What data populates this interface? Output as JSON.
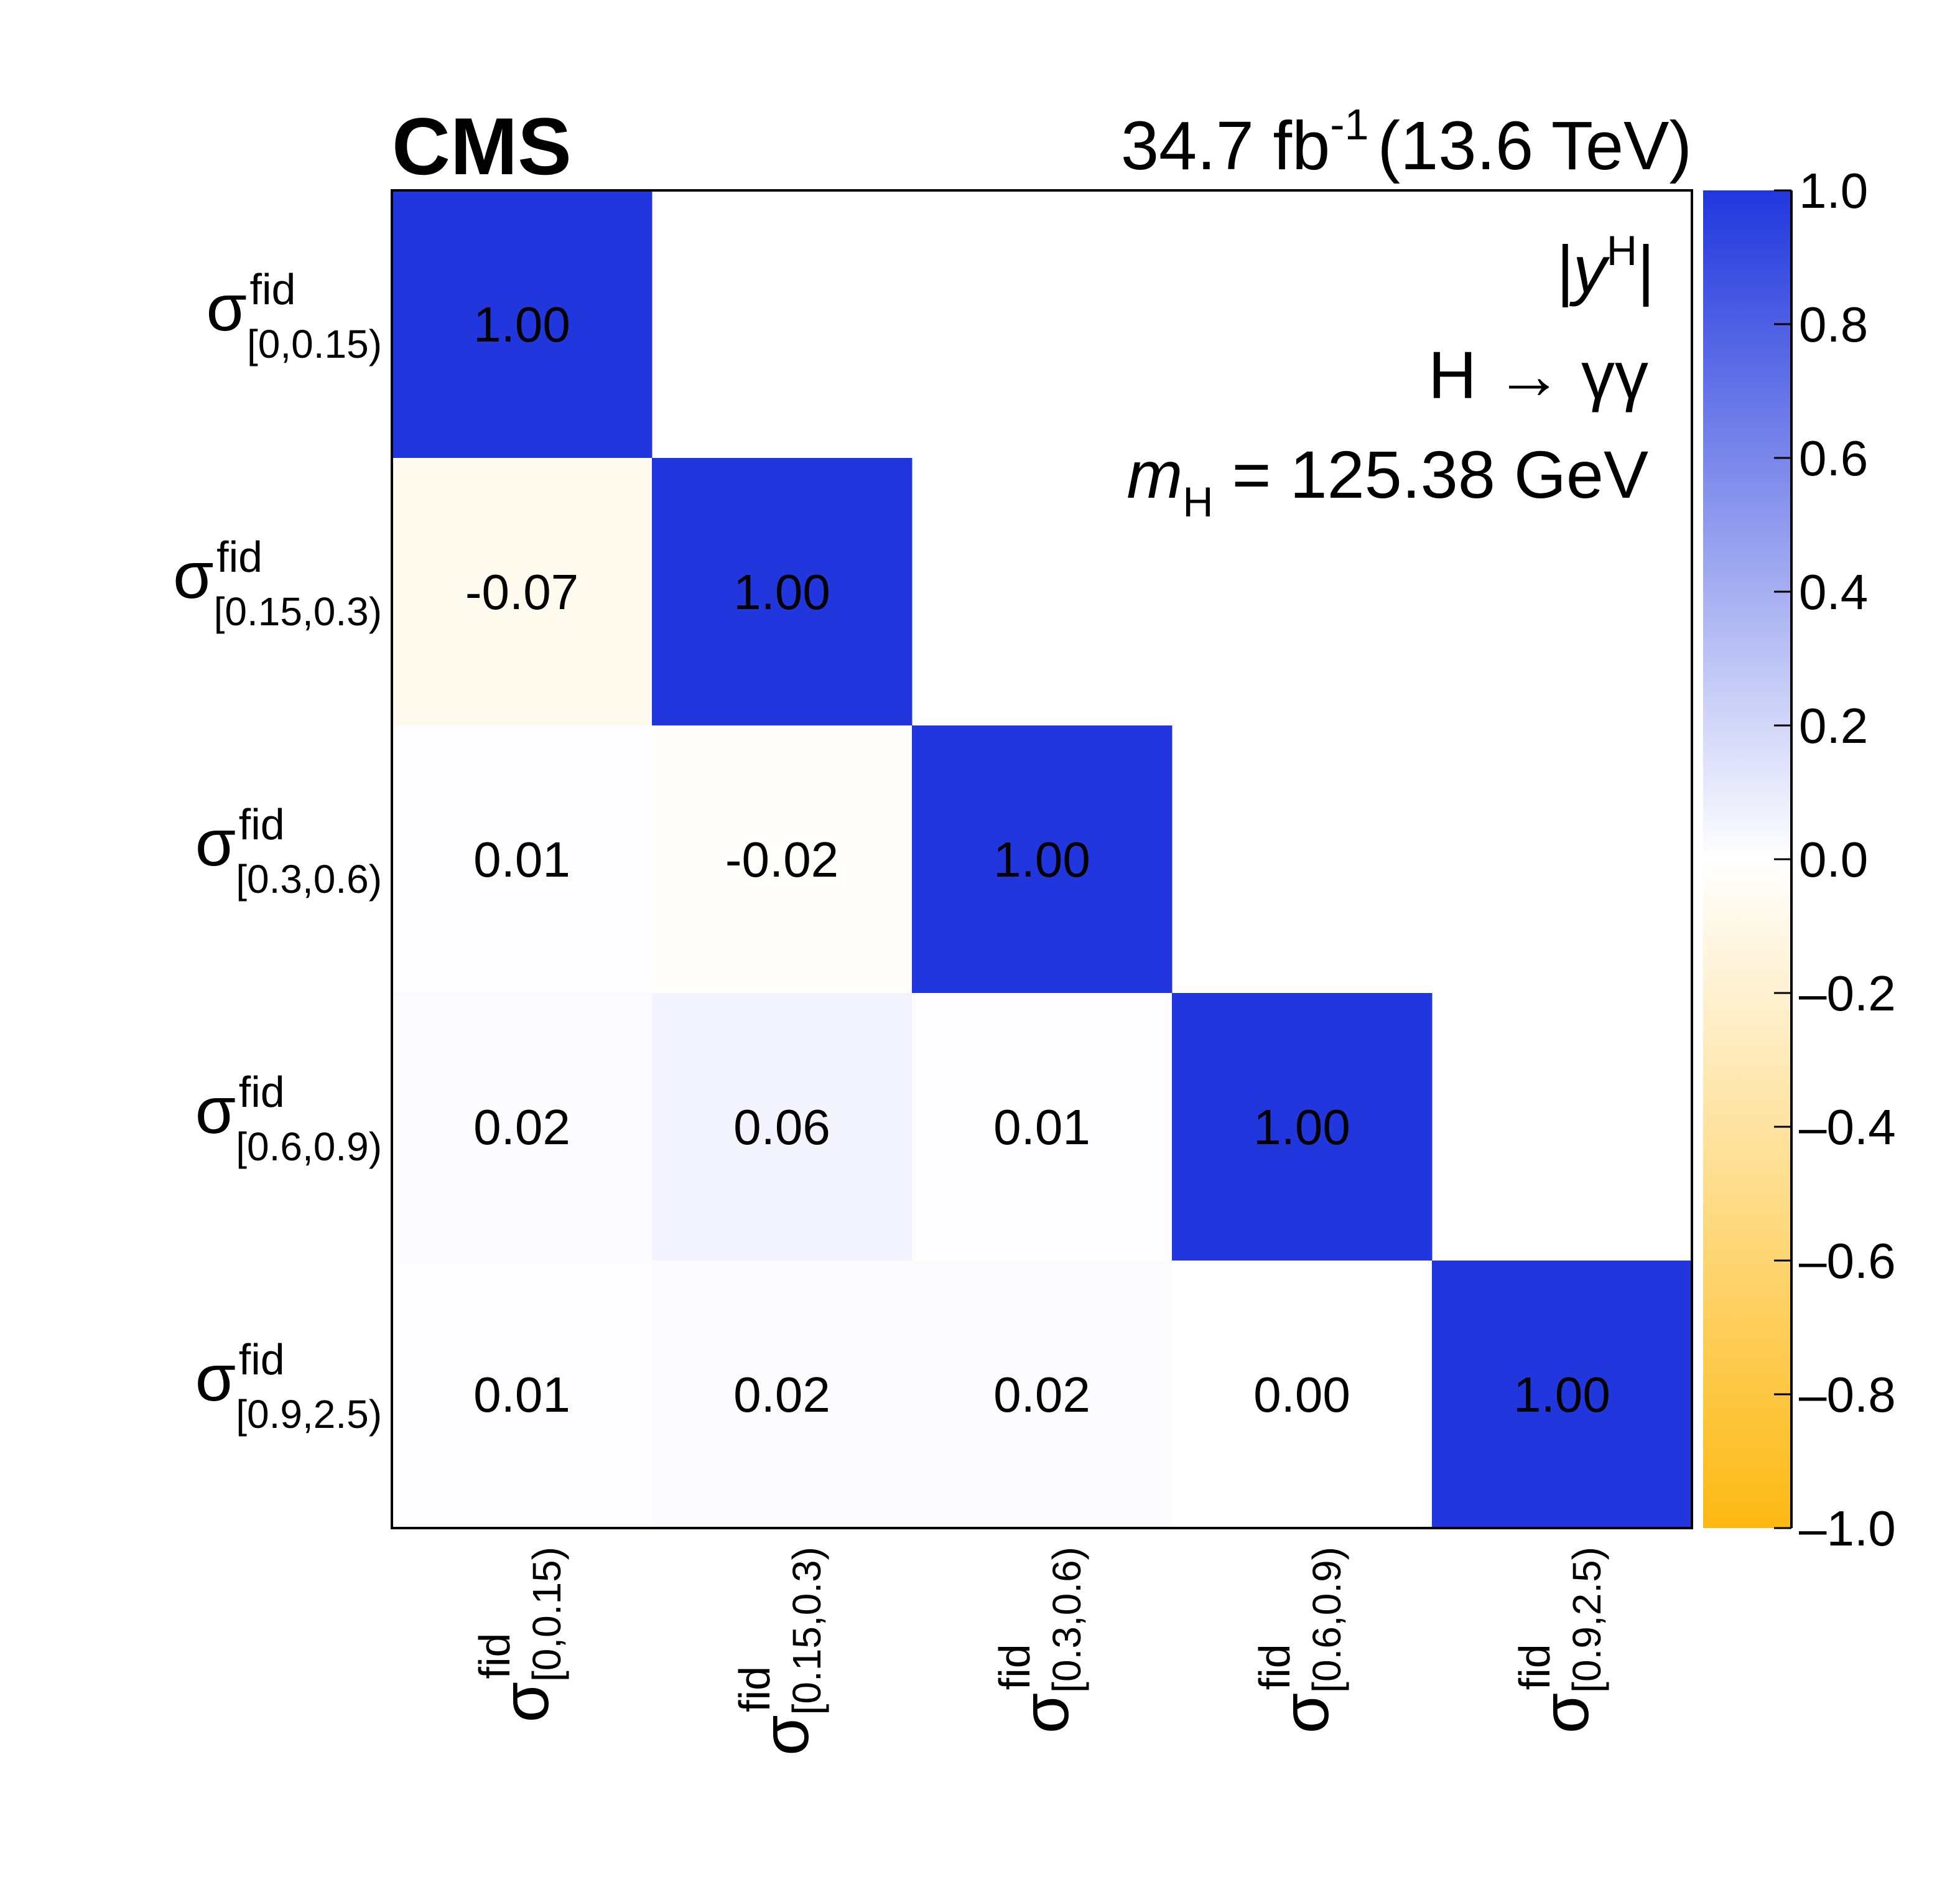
{
  "header": {
    "experiment": "CMS",
    "lumi_value": "34.7 fb",
    "lumi_exp": "-1",
    "energy": "(13.6 TeV)"
  },
  "annotations": {
    "observable": "|y",
    "observable_sup": "H",
    "observable_close": "|",
    "channel": "H → γγ",
    "mass_symbol": "m",
    "mass_sub": "H",
    "mass_value": " = 125.38 GeV"
  },
  "chart_data": {
    "type": "heatmap",
    "title": "",
    "xlabel": "",
    "ylabel": "",
    "categories": [
      {
        "symbol": "σ",
        "sup": "fid",
        "sub": "[0,0.15)"
      },
      {
        "symbol": "σ",
        "sup": "fid",
        "sub": "[0.15,0.3)"
      },
      {
        "symbol": "σ",
        "sup": "fid",
        "sub": "[0.3,0.6)"
      },
      {
        "symbol": "σ",
        "sup": "fid",
        "sub": "[0.6,0.9)"
      },
      {
        "symbol": "σ",
        "sup": "fid",
        "sub": "[0.9,2.5)"
      }
    ],
    "matrix": [
      [
        1.0,
        null,
        null,
        null,
        null
      ],
      [
        -0.07,
        1.0,
        null,
        null,
        null
      ],
      [
        0.01,
        -0.02,
        1.0,
        null,
        null
      ],
      [
        0.02,
        0.06,
        0.01,
        1.0,
        null
      ],
      [
        0.01,
        0.02,
        0.02,
        0.0,
        1.0
      ]
    ],
    "value_labels": [
      [
        "1.00",
        "",
        "",
        "",
        ""
      ],
      [
        "-0.07",
        "1.00",
        "",
        "",
        ""
      ],
      [
        "0.01",
        "-0.02",
        "1.00",
        "",
        ""
      ],
      [
        "0.02",
        "0.06",
        "0.01",
        "1.00",
        ""
      ],
      [
        "0.01",
        "0.02",
        "0.02",
        "0.00",
        "1.00"
      ]
    ],
    "colorbar": {
      "range": [
        -1.0,
        1.0
      ],
      "ticks": [
        "1.0",
        "0.8",
        "0.6",
        "0.4",
        "0.2",
        "0.0",
        "–0.2",
        "–0.4",
        "–0.6",
        "–0.8",
        "–1.0"
      ],
      "color_high": "#2137dd",
      "color_mid": "#ffffff",
      "color_low": "#fdb913"
    },
    "grid": false
  }
}
